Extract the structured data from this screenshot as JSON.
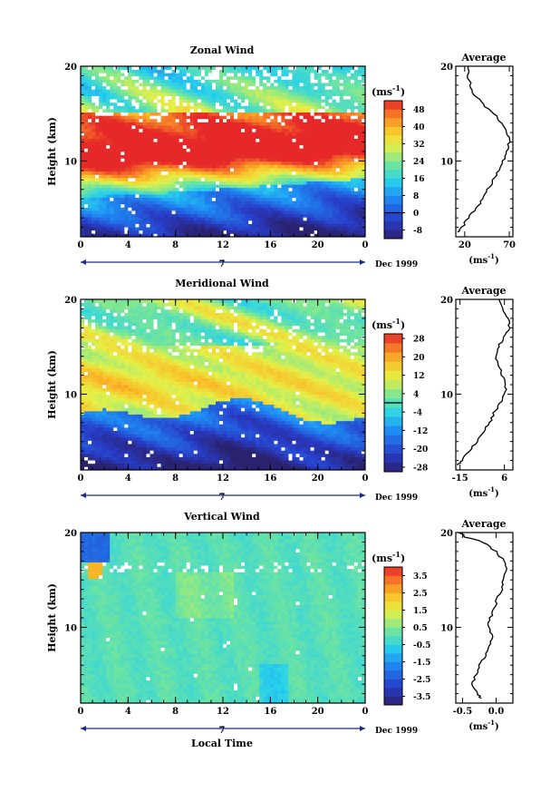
{
  "chart_data": [
    {
      "type": "heatmap",
      "title": "Zonal Wind",
      "ylabel": "Height (km)",
      "xlabel": "",
      "x_ticks": [
        "0",
        "4",
        "8",
        "12",
        "16",
        "20",
        "0"
      ],
      "day_label": "7",
      "date_label": "Dec 1999",
      "ylim": [
        2,
        20
      ],
      "y_ticks": [
        "20",
        "10"
      ],
      "xlim": [
        0,
        24
      ],
      "colorbar": {
        "unit_base": "(ms",
        "unit_exp": "-1",
        "unit_close": ")",
        "min": -12,
        "max": 52,
        "levels": [
          -12,
          -8,
          -4,
          0,
          4,
          8,
          12,
          16,
          20,
          24,
          28,
          32,
          36,
          40,
          44,
          48,
          52
        ],
        "ticks": [
          "48",
          "40",
          "32",
          "24",
          "16",
          "8",
          "0",
          "-8"
        ],
        "tick_values": [
          48,
          40,
          32,
          24,
          16,
          8,
          0,
          -8
        ],
        "zero_line": 0
      },
      "field": {
        "type": "jet",
        "core_height": 12.2,
        "core_height_slope": 0.0,
        "core_base": 8.0,
        "core_base_slope": 0.09,
        "peak": 60,
        "surface": -4,
        "stratosphere": 22
      },
      "average_profile": {
        "title": "Average",
        "x_ticks": [
          "20",
          "70"
        ],
        "x_tick_values": [
          20,
          70
        ],
        "xlim": [
          10,
          74
        ],
        "xlabel_base": "(ms",
        "xlabel_exp": "-1",
        "xlabel_close": ")",
        "y": [
          2.5,
          3,
          4,
          5,
          6,
          7,
          8,
          9,
          10,
          11,
          12,
          13,
          14,
          15,
          16,
          17,
          18,
          19,
          20
        ],
        "x": [
          12,
          17,
          24,
          33,
          40,
          46,
          52,
          58,
          63,
          67,
          70,
          68,
          62,
          52,
          40,
          31,
          26,
          24,
          23
        ]
      }
    },
    {
      "type": "heatmap",
      "title": "Meridional Wind",
      "ylabel": "Height (km)",
      "xlabel": "",
      "x_ticks": [
        "0",
        "4",
        "8",
        "12",
        "16",
        "20",
        "0"
      ],
      "day_label": "7",
      "date_label": "Dec 1999",
      "ylim": [
        2,
        20
      ],
      "y_ticks": [
        "20",
        "10"
      ],
      "xlim": [
        0,
        24
      ],
      "colorbar": {
        "unit_base": "(ms",
        "unit_exp": "-1",
        "unit_close": ")",
        "min": -30,
        "max": 30,
        "levels": [
          -30,
          -26,
          -22,
          -18,
          -14,
          -10,
          -6,
          -2,
          2,
          6,
          10,
          14,
          18,
          22,
          26,
          30
        ],
        "ticks": [
          "28",
          "20",
          "12",
          "4",
          "-4",
          "-12",
          "-20",
          "-28"
        ],
        "tick_values": [
          28,
          20,
          12,
          4,
          -4,
          -12,
          -20,
          -28
        ],
        "zero_line": 0
      },
      "field": {
        "type": "meridional"
      },
      "average_profile": {
        "title": "Average",
        "x_ticks": [
          "-15",
          "6"
        ],
        "x_tick_values": [
          -15,
          6
        ],
        "xlim": [
          -17,
          10
        ],
        "xlabel_base": "(ms",
        "xlabel_exp": "-1",
        "xlabel_close": ")",
        "y": [
          2.5,
          3,
          4,
          5,
          6,
          7,
          8,
          9,
          10,
          11,
          12,
          13,
          14,
          15,
          16,
          17,
          18,
          19,
          20
        ],
        "x": [
          -16,
          -14,
          -11,
          -7,
          -4,
          -1,
          1,
          4,
          6,
          7,
          5,
          3,
          2,
          3,
          6,
          8,
          8,
          5,
          3
        ]
      }
    },
    {
      "type": "heatmap",
      "title": "Vertical Wind",
      "ylabel": "Height (km)",
      "xlabel": "Local Time",
      "x_ticks": [
        "0",
        "4",
        "8",
        "12",
        "16",
        "20",
        "0"
      ],
      "day_label": "7",
      "date_label": "Dec 1999",
      "ylim": [
        2,
        20
      ],
      "y_ticks": [
        "20",
        "10"
      ],
      "xlim": [
        0,
        24
      ],
      "colorbar": {
        "unit_base": "(ms",
        "unit_exp": "-1",
        "unit_close": ")",
        "min": -4,
        "max": 4,
        "levels": [
          -4,
          -3.5,
          -3,
          -2.5,
          -2,
          -1.5,
          -1,
          -0.5,
          0,
          0.5,
          1,
          1.5,
          2,
          2.5,
          3,
          3.5,
          4
        ],
        "ticks": [
          "3.5",
          "2.5",
          "1.5",
          "0.5",
          "-0.5",
          "-1.5",
          "-2.5",
          "-3.5"
        ],
        "tick_values": [
          3.5,
          2.5,
          1.5,
          0.5,
          -0.5,
          -1.5,
          -2.5,
          -3.5
        ],
        "zero_line": null
      },
      "field": {
        "type": "vertical"
      },
      "average_profile": {
        "title": "Average",
        "x_ticks": [
          "-0.5",
          "0.0"
        ],
        "x_tick_values": [
          -0.5,
          0.0
        ],
        "xlim": [
          -0.6,
          0.25
        ],
        "xlabel_base": "(ms",
        "xlabel_exp": "-1",
        "xlabel_close": ")",
        "y": [
          2.5,
          3,
          4,
          5,
          6,
          7,
          8,
          9,
          10,
          11,
          12,
          13,
          14,
          15,
          16,
          17,
          18,
          19,
          19.5,
          20
        ],
        "x": [
          -0.22,
          -0.28,
          -0.35,
          -0.3,
          -0.25,
          -0.15,
          -0.1,
          -0.05,
          -0.12,
          -0.08,
          -0.02,
          0.02,
          0.08,
          0.12,
          0.15,
          0.12,
          0.0,
          -0.2,
          -0.45,
          -0.55
        ]
      }
    }
  ]
}
